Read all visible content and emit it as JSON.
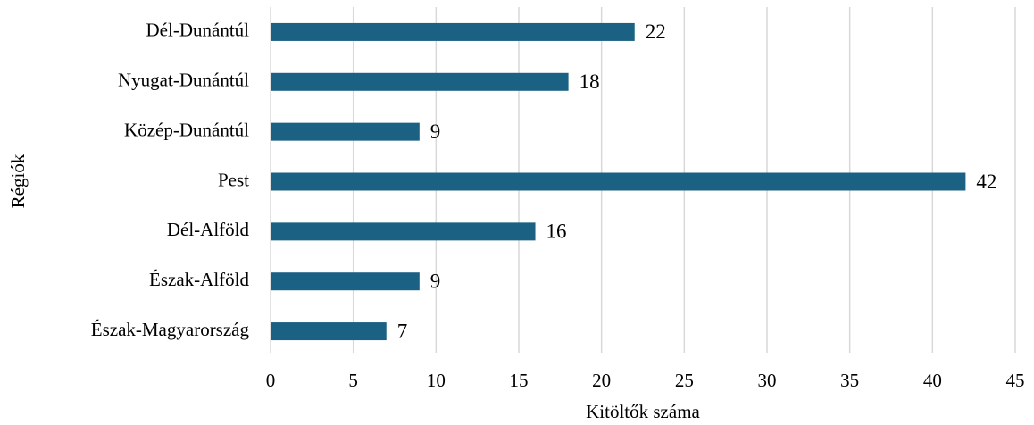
{
  "chart_data": {
    "type": "barh",
    "categories": [
      "Dél-Dunántúl",
      "Nyugat-Dunántúl",
      "Közép-Dunántúl",
      "Pest",
      "Dél-Alföld",
      "Észak-Alföld",
      "Észak-Magyarország"
    ],
    "values": [
      22,
      18,
      9,
      42,
      16,
      9,
      7
    ],
    "color": "#1b6183",
    "xlabel": "Kitöltők száma",
    "ylabel": "Régiók",
    "xlim": [
      0,
      45
    ],
    "xticks": [
      0,
      5,
      10,
      15,
      20,
      25,
      30,
      35,
      40,
      45
    ],
    "grid": true
  }
}
